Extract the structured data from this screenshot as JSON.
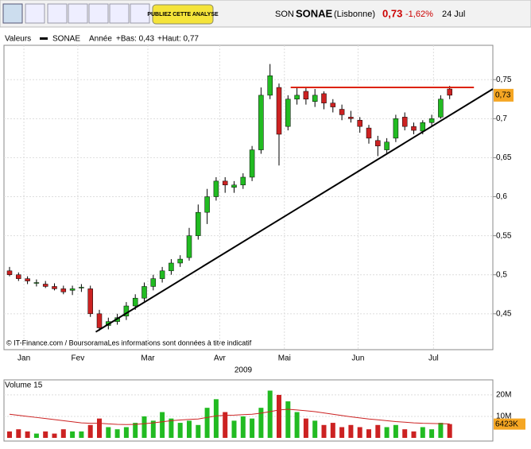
{
  "chart_data": {
    "type": "candlestick",
    "header": {
      "code": "SON",
      "name": "SONAE",
      "market": "(Lisbonne)",
      "price": "0,73",
      "change": "-1,62%",
      "date": "24 Jul"
    },
    "button": "PUBLIEZ CETTE ANALYSE",
    "legend": {
      "label": "Valeurs",
      "series": "SONAE",
      "period": "Année",
      "low": "+Bas: 0,43",
      "high": "+Haut: 0,77"
    },
    "source": "© IT-Finance.com / BoursoramaLes informations sont données à titre indicatif",
    "year": "2009",
    "categories": [
      null,
      null,
      null,
      null,
      null,
      null,
      null,
      null,
      null,
      null,
      null,
      null,
      null,
      null,
      null,
      null,
      null,
      null,
      null,
      null,
      null,
      null,
      null,
      null,
      null,
      null,
      null,
      null,
      null,
      null,
      null,
      null,
      null,
      null,
      null,
      null,
      null,
      null,
      null,
      null,
      null,
      null,
      null,
      null,
      null,
      null,
      null,
      null,
      null,
      null
    ],
    "open": [
      0.505,
      0.5,
      0.495,
      0.49,
      0.488,
      0.485,
      0.482,
      0.48,
      0.484,
      0.482,
      0.45,
      0.435,
      0.44,
      0.447,
      0.46,
      0.47,
      0.485,
      0.495,
      0.505,
      0.515,
      0.522,
      0.55,
      0.58,
      0.6,
      0.62,
      0.612,
      0.615,
      0.625,
      0.66,
      0.73,
      0.74,
      0.69,
      0.725,
      0.735,
      0.722,
      0.732,
      0.72,
      0.712,
      0.702,
      0.698,
      0.688,
      0.672,
      0.66,
      0.675,
      0.702,
      0.69,
      0.684,
      0.695,
      0.702,
      0.738
    ],
    "high": [
      0.51,
      0.503,
      0.498,
      0.494,
      0.492,
      0.489,
      0.486,
      0.486,
      0.488,
      0.486,
      0.455,
      0.445,
      0.45,
      0.465,
      0.475,
      0.49,
      0.5,
      0.51,
      0.52,
      0.525,
      0.56,
      0.59,
      0.61,
      0.625,
      0.625,
      0.62,
      0.63,
      0.665,
      0.74,
      0.77,
      0.745,
      0.73,
      0.74,
      0.74,
      0.738,
      0.735,
      0.725,
      0.718,
      0.71,
      0.702,
      0.692,
      0.678,
      0.675,
      0.705,
      0.708,
      0.695,
      0.698,
      0.705,
      0.73,
      0.742
    ],
    "low": [
      0.498,
      0.492,
      0.488,
      0.485,
      0.483,
      0.48,
      0.475,
      0.474,
      0.478,
      0.446,
      0.428,
      0.43,
      0.436,
      0.442,
      0.455,
      0.466,
      0.48,
      0.49,
      0.5,
      0.51,
      0.518,
      0.545,
      0.565,
      0.595,
      0.605,
      0.605,
      0.61,
      0.62,
      0.655,
      0.725,
      0.64,
      0.685,
      0.718,
      0.718,
      0.715,
      0.712,
      0.708,
      0.698,
      0.695,
      0.682,
      0.668,
      0.652,
      0.655,
      0.67,
      0.685,
      0.68,
      0.68,
      0.69,
      0.7,
      0.725
    ],
    "close": [
      0.5,
      0.495,
      0.492,
      0.49,
      0.485,
      0.482,
      0.478,
      0.482,
      0.484,
      0.45,
      0.432,
      0.44,
      0.445,
      0.46,
      0.47,
      0.485,
      0.495,
      0.505,
      0.515,
      0.52,
      0.55,
      0.58,
      0.6,
      0.62,
      0.615,
      0.615,
      0.625,
      0.66,
      0.73,
      0.755,
      0.68,
      0.725,
      0.73,
      0.725,
      0.73,
      0.72,
      0.715,
      0.705,
      0.7,
      0.69,
      0.675,
      0.665,
      0.67,
      0.7,
      0.69,
      0.685,
      0.695,
      0.7,
      0.725,
      0.73
    ],
    "colors": {
      "up": "#22bb22",
      "down": "#cc2222"
    },
    "ylim": [
      0.404,
      0.794
    ],
    "yticks": [
      {
        "value": 0.45,
        "label": "0,45"
      },
      {
        "value": 0.5,
        "label": "0,5"
      },
      {
        "value": 0.55,
        "label": "0,55"
      },
      {
        "value": 0.6,
        "label": "0,6"
      },
      {
        "value": 0.65,
        "label": "0,65"
      },
      {
        "value": 0.7,
        "label": "0,7"
      },
      {
        "value": 0.75,
        "label": "0,75"
      }
    ],
    "last": {
      "value": 0.73,
      "label": "0,73"
    },
    "xticks": [
      {
        "value": 1.6,
        "label": "Jan"
      },
      {
        "value": 7.6,
        "label": "Fev"
      },
      {
        "value": 15.4,
        "label": "Mar"
      },
      {
        "value": 23.4,
        "label": "Avr"
      },
      {
        "value": 30.6,
        "label": "Mai"
      },
      {
        "value": 38.8,
        "label": "Jun"
      },
      {
        "value": 47.2,
        "label": "Jul"
      }
    ],
    "lines": [
      {
        "color": "#dd2200",
        "start": 31.3,
        "end": 51.7,
        "values": [
          0.74,
          0.74
        ]
      },
      {
        "color": "#000000",
        "start": 9.6,
        "end": 53.8,
        "values": [
          0.4267,
          0.738
        ]
      }
    ],
    "volume": {
      "title": "Volume 15",
      "color": "#22cc22",
      "ma_color": "#cc2222",
      "values": [
        3,
        4,
        3,
        2,
        3,
        2,
        4,
        3,
        3,
        6,
        9,
        5,
        4,
        5,
        7,
        10,
        8,
        12,
        9,
        7,
        8,
        6,
        14,
        18,
        12,
        8,
        10,
        9,
        14,
        22,
        20,
        17,
        12,
        9,
        8,
        6,
        7,
        5,
        6,
        5,
        4,
        6,
        5,
        6,
        4,
        3,
        5,
        4,
        7,
        6.423
      ],
      "value_labels": [
        null,
        null,
        null,
        null,
        null,
        null,
        null,
        null,
        null,
        null,
        null,
        null,
        null,
        null,
        null,
        null,
        null,
        null,
        null,
        null,
        null,
        null,
        null,
        null,
        null,
        null,
        null,
        null,
        null,
        null,
        null,
        null,
        null,
        null,
        null,
        null,
        null,
        null,
        null,
        null,
        null,
        null,
        null,
        null,
        null,
        null,
        null,
        null,
        null,
        "6423K"
      ],
      "ma": [
        11,
        10.5,
        10,
        9.5,
        9,
        8.5,
        8,
        7.5,
        7,
        6.8,
        6.8,
        6.5,
        6.3,
        6.2,
        6.3,
        6.6,
        7,
        7.5,
        8,
        8.3,
        8.6,
        8.8,
        9.5,
        10.2,
        10.5,
        10.6,
        10.8,
        11,
        11.5,
        12.2,
        13,
        13.3,
        13,
        12.6,
        12.2,
        11.6,
        11,
        10.4,
        9.8,
        9.3,
        8.8,
        8.4,
        8,
        7.6,
        7.3,
        7,
        6.8,
        6.7,
        6.6,
        6.5
      ],
      "ylim": [
        0,
        27
      ],
      "yticks": [
        {
          "value": 10,
          "label": "10M"
        },
        {
          "value": 20,
          "label": "20M"
        }
      ]
    }
  }
}
